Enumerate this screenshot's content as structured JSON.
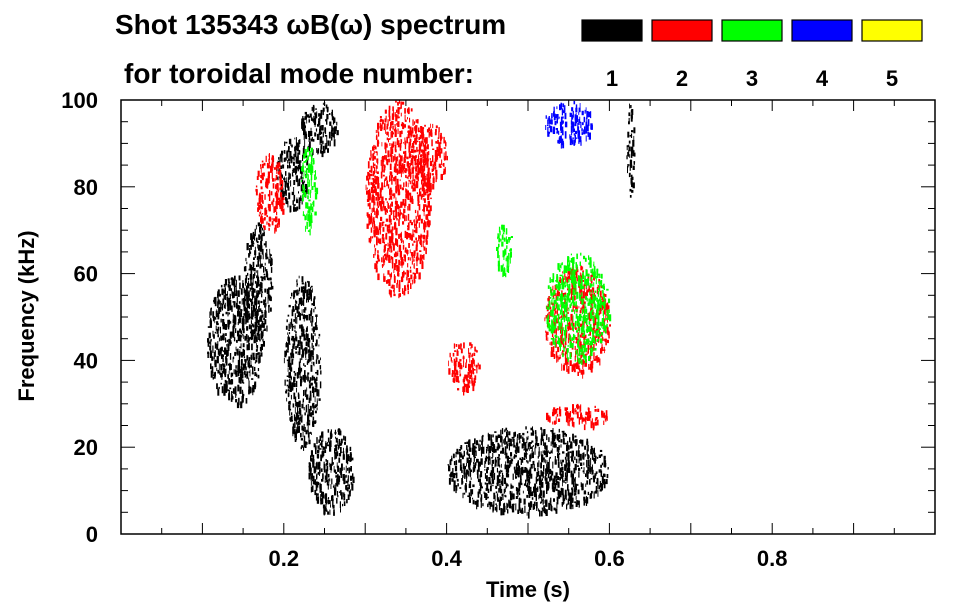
{
  "chart_data": {
    "type": "heatmap",
    "title_line1": "Shot 135343 ωB(ω) spectrum",
    "title_line2": "for toroidal mode number:",
    "xlabel": "Time (s)",
    "ylabel": "Frequency (kHz)",
    "xlim": [
      0.0,
      1.0
    ],
    "ylim": [
      0,
      100
    ],
    "x_ticks": [
      0.2,
      0.4,
      0.6,
      0.8
    ],
    "x_tick_labels": [
      "0.2",
      "0.4",
      "0.6",
      "0.8"
    ],
    "y_ticks": [
      0,
      20,
      40,
      60,
      80,
      100
    ],
    "y_tick_labels": [
      "0",
      "20",
      "40",
      "60",
      "80",
      "100"
    ],
    "legend": [
      {
        "label": "1",
        "color": "#000000"
      },
      {
        "label": "2",
        "color": "#ff0000"
      },
      {
        "label": "3",
        "color": "#00ff00"
      },
      {
        "label": "4",
        "color": "#0000ff"
      },
      {
        "label": "5",
        "color": "#ffff00"
      }
    ],
    "legend_position": "top-right",
    "series": [
      {
        "mode": "1",
        "color": "#000000",
        "regions": [
          {
            "t": [
              0.105,
              0.175
            ],
            "f": [
              30,
              60
            ]
          },
          {
            "t": [
              0.15,
              0.185
            ],
            "f": [
              45,
              72
            ]
          },
          {
            "t": [
              0.19,
              0.23
            ],
            "f": [
              75,
              92
            ]
          },
          {
            "t": [
              0.22,
              0.265
            ],
            "f": [
              88,
              100
            ]
          },
          {
            "t": [
              0.23,
              0.285
            ],
            "f": [
              5,
              25
            ]
          },
          {
            "t": [
              0.2,
              0.245
            ],
            "f": [
              20,
              60
            ]
          },
          {
            "t": [
              0.4,
              0.6
            ],
            "f": [
              5,
              25
            ]
          },
          {
            "t": [
              0.62,
              0.63
            ],
            "f": [
              78,
              100
            ]
          }
        ]
      },
      {
        "mode": "2",
        "color": "#ff0000",
        "regions": [
          {
            "t": [
              0.165,
              0.2
            ],
            "f": [
              70,
              88
            ]
          },
          {
            "t": [
              0.3,
              0.38
            ],
            "f": [
              55,
              100
            ]
          },
          {
            "t": [
              0.355,
              0.4
            ],
            "f": [
              80,
              95
            ]
          },
          {
            "t": [
              0.4,
              0.44
            ],
            "f": [
              33,
              45
            ]
          },
          {
            "t": [
              0.52,
              0.6
            ],
            "f": [
              37,
              62
            ]
          },
          {
            "t": [
              0.52,
              0.6
            ],
            "f": [
              25,
              30
            ]
          }
        ]
      },
      {
        "mode": "3",
        "color": "#00ff00",
        "regions": [
          {
            "t": [
              0.22,
              0.24
            ],
            "f": [
              70,
              90
            ]
          },
          {
            "t": [
              0.46,
              0.48
            ],
            "f": [
              60,
              72
            ]
          },
          {
            "t": [
              0.52,
              0.6
            ],
            "f": [
              40,
              65
            ]
          }
        ]
      },
      {
        "mode": "4",
        "color": "#0000ff",
        "regions": [
          {
            "t": [
              0.52,
              0.58
            ],
            "f": [
              90,
              100
            ]
          }
        ]
      },
      {
        "mode": "5",
        "color": "#ffff00",
        "regions": []
      }
    ]
  }
}
